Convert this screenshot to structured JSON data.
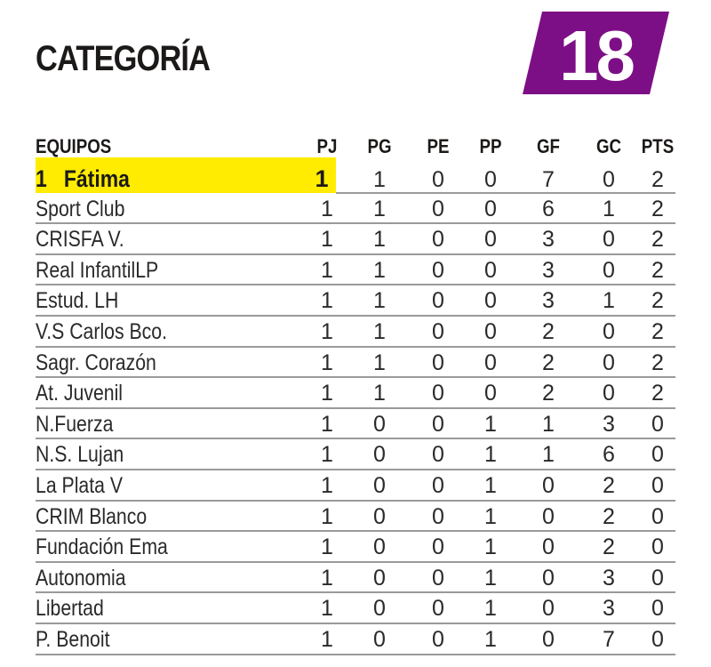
{
  "title": "CATEGORÍA",
  "category_number": "18",
  "colors": {
    "badge": "#7d0f86",
    "highlight": "#ffec00"
  },
  "columns": [
    "EQUIPOS",
    "PJ",
    "PG",
    "PE",
    "PP",
    "GF",
    "GC",
    "PTS"
  ],
  "rows": [
    {
      "team": "1   Fátima",
      "v": [
        "1",
        "1",
        "0",
        "0",
        "7",
        "0",
        "2"
      ]
    },
    {
      "team": "Sport Club",
      "v": [
        "1",
        "1",
        "0",
        "0",
        "6",
        "1",
        "2"
      ]
    },
    {
      "team": "CRISFA V.",
      "v": [
        "1",
        "1",
        "0",
        "0",
        "3",
        "0",
        "2"
      ]
    },
    {
      "team": "Real InfantilLP",
      "v": [
        "1",
        "1",
        "0",
        "0",
        "3",
        "0",
        "2"
      ]
    },
    {
      "team": "Estud. LH",
      "v": [
        "1",
        "1",
        "0",
        "0",
        "3",
        "1",
        "2"
      ]
    },
    {
      "team": "V.S Carlos Bco.",
      "v": [
        "1",
        "1",
        "0",
        "0",
        "2",
        "0",
        "2"
      ]
    },
    {
      "team": "Sagr. Corazón",
      "v": [
        "1",
        "1",
        "0",
        "0",
        "2",
        "0",
        "2"
      ]
    },
    {
      "team": "At. Juvenil",
      "v": [
        "1",
        "1",
        "0",
        "0",
        "2",
        "0",
        "2"
      ]
    },
    {
      "team": "N.Fuerza",
      "v": [
        "1",
        "0",
        "0",
        "1",
        "1",
        "3",
        "0"
      ]
    },
    {
      "team": "N.S. Lujan",
      "v": [
        "1",
        "0",
        "0",
        "1",
        "1",
        "6",
        "0"
      ]
    },
    {
      "team": "La Plata V",
      "v": [
        "1",
        "0",
        "0",
        "1",
        "0",
        "2",
        "0"
      ]
    },
    {
      "team": "CRIM Blanco",
      "v": [
        "1",
        "0",
        "0",
        "1",
        "0",
        "2",
        "0"
      ]
    },
    {
      "team": "Fundación Ema",
      "v": [
        "1",
        "0",
        "0",
        "1",
        "0",
        "2",
        "0"
      ]
    },
    {
      "team": "Autonomia",
      "v": [
        "1",
        "0",
        "0",
        "1",
        "0",
        "3",
        "0"
      ]
    },
    {
      "team": "Libertad",
      "v": [
        "1",
        "0",
        "0",
        "1",
        "0",
        "3",
        "0"
      ]
    },
    {
      "team": "P. Benoit",
      "v": [
        "1",
        "0",
        "0",
        "1",
        "0",
        "7",
        "0"
      ]
    }
  ]
}
